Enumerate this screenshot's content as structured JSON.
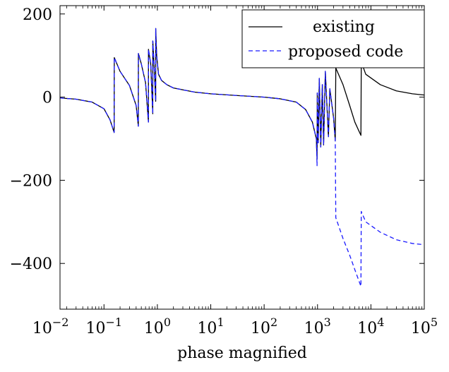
{
  "chart_data": {
    "type": "line",
    "title": "",
    "xlabel": "phase magnified",
    "ylabel": "",
    "x_scale": "log",
    "xlim": [
      0.015,
      100000
    ],
    "ylim": [
      -510,
      220
    ],
    "x_ticks": [
      0.01,
      0.1,
      1,
      10,
      100,
      1000,
      10000,
      100000
    ],
    "x_tick_labels": [
      {
        "base": "10",
        "exp": "−2"
      },
      {
        "base": "10",
        "exp": "−1"
      },
      {
        "base": "10",
        "exp": "0"
      },
      {
        "base": "10",
        "exp": "1"
      },
      {
        "base": "10",
        "exp": "2"
      },
      {
        "base": "10",
        "exp": "3"
      },
      {
        "base": "10",
        "exp": "4"
      },
      {
        "base": "10",
        "exp": "5"
      }
    ],
    "y_ticks": [
      200,
      0,
      -200,
      -400
    ],
    "y_tick_labels": [
      "200",
      "0",
      "−200",
      "−400"
    ],
    "grid": false,
    "legend_position": "top-right",
    "series": [
      {
        "name": "existing",
        "color": "#000000",
        "dash": "solid",
        "points": [
          [
            0.015,
            -2
          ],
          [
            0.03,
            -5
          ],
          [
            0.06,
            -12
          ],
          [
            0.1,
            -28
          ],
          [
            0.13,
            -55
          ],
          [
            0.155,
            -85
          ],
          [
            0.156,
            95
          ],
          [
            0.2,
            62
          ],
          [
            0.3,
            28
          ],
          [
            0.4,
            -20
          ],
          [
            0.44,
            -70
          ],
          [
            0.441,
            105
          ],
          [
            0.5,
            80
          ],
          [
            0.6,
            35
          ],
          [
            0.68,
            -60
          ],
          [
            0.681,
            115
          ],
          [
            0.75,
            80
          ],
          [
            0.82,
            -40
          ],
          [
            0.821,
            135
          ],
          [
            0.88,
            60
          ],
          [
            0.93,
            -10
          ],
          [
            0.931,
            165
          ],
          [
            0.97,
            100
          ],
          [
            1.05,
            55
          ],
          [
            1.2,
            40
          ],
          [
            1.5,
            30
          ],
          [
            2,
            22
          ],
          [
            5,
            12
          ],
          [
            10,
            8
          ],
          [
            30,
            4
          ],
          [
            100,
            0
          ],
          [
            200,
            -4
          ],
          [
            400,
            -12
          ],
          [
            600,
            -30
          ],
          [
            800,
            -60
          ],
          [
            950,
            -100
          ],
          [
            980,
            -150
          ],
          [
            990,
            10
          ],
          [
            1030,
            -110
          ],
          [
            1080,
            45
          ],
          [
            1150,
            -120
          ],
          [
            1230,
            30
          ],
          [
            1300,
            -115
          ],
          [
            1400,
            62
          ],
          [
            1600,
            -95
          ],
          [
            1700,
            20
          ],
          [
            2000,
            -50
          ],
          [
            2150,
            -105
          ],
          [
            2200,
            70
          ],
          [
            3000,
            30
          ],
          [
            4000,
            -20
          ],
          [
            5000,
            -60
          ],
          [
            6500,
            -92
          ],
          [
            6600,
            85
          ],
          [
            8000,
            55
          ],
          [
            15000,
            30
          ],
          [
            30000,
            15
          ],
          [
            60000,
            8
          ],
          [
            100000,
            5
          ]
        ]
      },
      {
        "name": "proposed code",
        "color": "#1a1aff",
        "dash": "dashed",
        "points": [
          [
            0.015,
            -2
          ],
          [
            0.03,
            -5
          ],
          [
            0.06,
            -12
          ],
          [
            0.1,
            -28
          ],
          [
            0.13,
            -55
          ],
          [
            0.155,
            -85
          ],
          [
            0.156,
            95
          ],
          [
            0.2,
            62
          ],
          [
            0.3,
            28
          ],
          [
            0.4,
            -20
          ],
          [
            0.44,
            -70
          ],
          [
            0.441,
            105
          ],
          [
            0.5,
            80
          ],
          [
            0.6,
            35
          ],
          [
            0.68,
            -60
          ],
          [
            0.681,
            115
          ],
          [
            0.75,
            80
          ],
          [
            0.82,
            -40
          ],
          [
            0.821,
            135
          ],
          [
            0.88,
            60
          ],
          [
            0.93,
            -10
          ],
          [
            0.931,
            165
          ],
          [
            0.97,
            100
          ],
          [
            1.05,
            55
          ],
          [
            1.2,
            40
          ],
          [
            1.5,
            30
          ],
          [
            2,
            22
          ],
          [
            5,
            12
          ],
          [
            10,
            8
          ],
          [
            30,
            4
          ],
          [
            100,
            0
          ],
          [
            200,
            -4
          ],
          [
            400,
            -12
          ],
          [
            600,
            -30
          ],
          [
            800,
            -60
          ],
          [
            950,
            -100
          ],
          [
            980,
            -165
          ],
          [
            990,
            10
          ],
          [
            1030,
            -110
          ],
          [
            1080,
            45
          ],
          [
            1150,
            -120
          ],
          [
            1230,
            30
          ],
          [
            1300,
            -115
          ],
          [
            1400,
            62
          ],
          [
            1600,
            -95
          ],
          [
            1700,
            20
          ],
          [
            2000,
            -50
          ],
          [
            2150,
            -105
          ],
          [
            2200,
            -290
          ],
          [
            3000,
            -340
          ],
          [
            4000,
            -380
          ],
          [
            5000,
            -415
          ],
          [
            6500,
            -455
          ],
          [
            6600,
            -275
          ],
          [
            8000,
            -300
          ],
          [
            15000,
            -325
          ],
          [
            30000,
            -343
          ],
          [
            60000,
            -352
          ],
          [
            100000,
            -355
          ]
        ]
      }
    ]
  }
}
